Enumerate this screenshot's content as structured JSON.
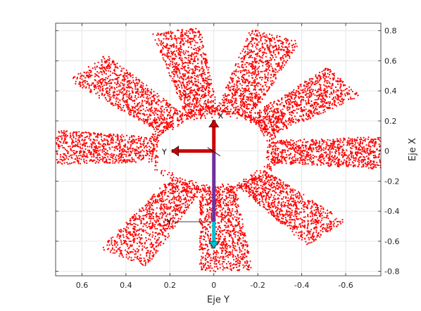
{
  "chart_data": {
    "type": "scatter",
    "title": "",
    "xlabel": "Eje Y",
    "ylabel": "Eje X",
    "x_reversed": true,
    "xlim": [
      -0.76,
      0.72
    ],
    "ylim": [
      -0.83,
      0.85
    ],
    "xticks": [
      0.6,
      0.4,
      0.2,
      0,
      -0.2,
      -0.4,
      -0.6
    ],
    "xtick_labels": [
      "0.6",
      "0.4",
      "0.2",
      "0",
      "-0.2",
      "-0.4",
      "-0.6"
    ],
    "yticks": [
      0.8,
      0.6,
      0.4,
      0.2,
      0,
      -0.2,
      -0.4,
      -0.6,
      -0.8
    ],
    "ytick_labels": [
      "0.8",
      "0.6",
      "0.4",
      "0.2",
      "0",
      "-0.2",
      "-0.4",
      "-0.6",
      "-0.8"
    ],
    "y_axis_location": "right",
    "grid": true,
    "point_color": "#ff0000",
    "description_of_series": "point cloud of laser scan hits forming 9 radial blades around origin",
    "blades": [
      {
        "angle_deg": 88,
        "r_start": 0.27,
        "r_end": 0.82,
        "half_width": 0.11
      },
      {
        "angle_deg": 46,
        "r_start": 0.25,
        "r_end": 0.8,
        "half_width": 0.11
      },
      {
        "angle_deg": 12,
        "r_start": 0.24,
        "r_end": 0.82,
        "half_width": 0.1
      },
      {
        "angle_deg": -20,
        "r_start": 0.26,
        "r_end": 0.82,
        "half_width": 0.11
      },
      {
        "angle_deg": -52,
        "r_start": 0.26,
        "r_end": 0.75,
        "half_width": 0.11
      },
      {
        "angle_deg": -91,
        "r_start": 0.26,
        "r_end": 0.78,
        "half_width": 0.1
      },
      {
        "angle_deg": -137,
        "r_start": 0.25,
        "r_end": 0.75,
        "half_width": 0.11
      },
      {
        "angle_deg": -176,
        "r_start": 0.24,
        "r_end": 0.8,
        "half_width": 0.11
      },
      {
        "angle_deg": 150,
        "r_start": 0.24,
        "r_end": 0.82,
        "half_width": 0.11
      }
    ],
    "frames": [
      {
        "origin": [
          0,
          0
        ],
        "x_axis_color": "#cc0000",
        "y_axis_color": "#cc0000",
        "y_label": "Y",
        "x_label": "X"
      },
      {
        "origin": [
          0,
          -0.47
        ],
        "x_axis_color": "#00c0d0",
        "y_axis_color": "#404040",
        "y_label": "Y",
        "x_label": "X"
      }
    ],
    "link": {
      "from": [
        0,
        0
      ],
      "to": [
        0,
        -0.47
      ],
      "color": "#7030a0"
    }
  }
}
